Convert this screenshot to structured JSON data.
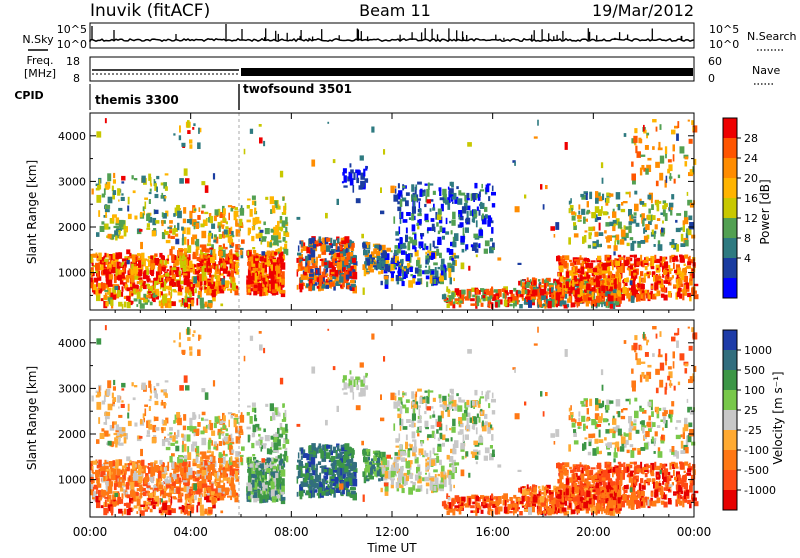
{
  "header": {
    "station": "Inuvik (fitACF)",
    "beam": "Beam 11",
    "date": "19/Mar/2012"
  },
  "panels": {
    "nsky": {
      "label": "N.Sky",
      "left_ticks": [
        "10^5",
        "10^0"
      ],
      "right_label": "N.Search",
      "right_ticks": [
        "10^5",
        "10^0"
      ]
    },
    "freq": {
      "label_line1": "Freq.",
      "label_line2": "[MHz]",
      "left_ticks": [
        "18",
        "8"
      ],
      "right_label": "Nave",
      "right_ticks": [
        "60",
        "0"
      ]
    },
    "cpid": {
      "label": "CPID",
      "modes": [
        "themis 3300",
        "twofsound 3501"
      ]
    }
  },
  "chart_data": [
    {
      "type": "heatmap",
      "name": "power",
      "ylabel": "Slant Range [km]",
      "yticks": [
        1000,
        2000,
        3000,
        4000
      ],
      "ylim": [
        180,
        4500
      ],
      "colorbar": {
        "label": "Power [dB]",
        "ticks": [
          "28",
          "24",
          "20",
          "16",
          "12",
          "8",
          "4"
        ],
        "colors": [
          "#ee0000",
          "#ff5500",
          "#ff8c00",
          "#ffb400",
          "#c8c800",
          "#52a052",
          "#2e7a80",
          "#1a3ca0",
          "#0000ff"
        ]
      }
    },
    {
      "type": "heatmap",
      "name": "velocity",
      "ylabel": "Slant Range [km]",
      "yticks": [
        1000,
        2000,
        3000,
        4000
      ],
      "ylim": [
        180,
        4500
      ],
      "colorbar": {
        "label": "Velocity [m s⁻¹]",
        "ticks": [
          "1000",
          "500",
          "100",
          "25",
          "-25",
          "-100",
          "-500",
          "-1000"
        ],
        "colors": [
          "#1e3ca8",
          "#326e7e",
          "#3c9646",
          "#78c84a",
          "#c8c8c8",
          "#ffaa32",
          "#ff7814",
          "#ff4a14",
          "#e60000"
        ]
      }
    }
  ],
  "time_axis": {
    "label": "Time UT",
    "ticks": [
      "00:00",
      "04:00",
      "08:00",
      "12:00",
      "16:00",
      "20:00",
      "00:00"
    ],
    "range_hours": [
      0,
      24
    ]
  }
}
